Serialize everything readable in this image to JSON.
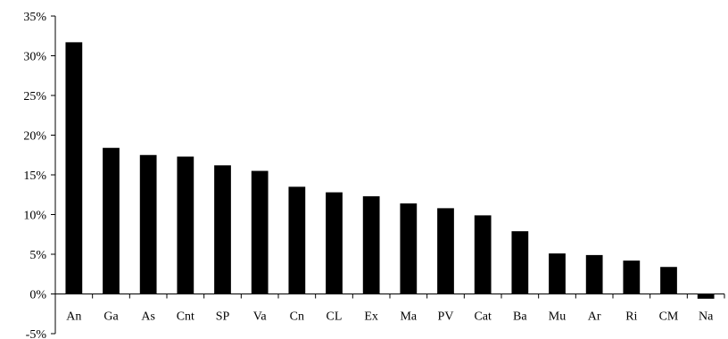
{
  "chart_data": {
    "type": "bar",
    "title": "",
    "xlabel": "",
    "ylabel": "",
    "categories": [
      "An",
      "Ga",
      "As",
      "Cnt",
      "SP",
      "Va",
      "Cn",
      "CL",
      "Ex",
      "Ma",
      "PV",
      "Cat",
      "Ba",
      "Mu",
      "Ar",
      "Ri",
      "CM",
      "Na"
    ],
    "values": [
      31.7,
      18.4,
      17.5,
      17.3,
      16.2,
      15.5,
      13.5,
      12.8,
      12.3,
      11.4,
      10.8,
      9.9,
      7.9,
      5.1,
      4.9,
      4.2,
      3.4,
      -0.6
    ],
    "ylim": [
      -5,
      35
    ],
    "yticks": [
      -5,
      0,
      5,
      10,
      15,
      20,
      25,
      30,
      35
    ],
    "ytick_labels": [
      "-5%",
      "0%",
      "5%",
      "10%",
      "15%",
      "20%",
      "25%",
      "30%",
      "35%"
    ],
    "grid": false,
    "legend": "none",
    "bar_color": "#000000"
  }
}
